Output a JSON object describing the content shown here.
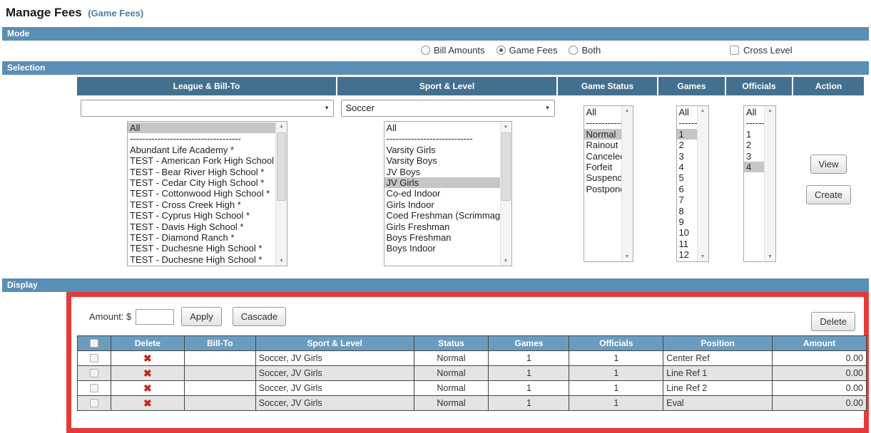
{
  "page": {
    "title": "Manage Fees",
    "subtitle": "(Game Fees)"
  },
  "section_labels": {
    "mode": "Mode",
    "selection": "Selection",
    "display": "Display"
  },
  "icons": {
    "dropdown_arrow": "▼",
    "scroll_up": "▲",
    "scroll_down": "▼",
    "delete_x": "✖"
  },
  "colors": {
    "section_bar": "#5b8eb4",
    "selection_header": "#44708f",
    "display_table_header": "#6b9cc0",
    "red_border": "#e23b3b",
    "delete_icon": "#c3271b",
    "selected_item_bg": "#c6c6c6"
  },
  "mode": {
    "options": [
      {
        "label": "Bill Amounts",
        "selected": false
      },
      {
        "label": "Game Fees",
        "selected": true
      },
      {
        "label": "Both",
        "selected": false
      }
    ],
    "cross_level": {
      "label": "Cross Level",
      "checked": false
    }
  },
  "selection": {
    "columns": [
      "League & Bill-To",
      "Sport & Level",
      "Game Status",
      "Games",
      "Officials",
      "Action"
    ],
    "league_dropdown_value": "",
    "sport_dropdown_value": "Soccer",
    "league_list": [
      {
        "label": "All",
        "selected": true
      },
      {
        "label": "------------------------------------"
      },
      {
        "label": "Abundant Life Academy *"
      },
      {
        "label": "TEST - American Fork High School *"
      },
      {
        "label": "TEST - Bear River High School *"
      },
      {
        "label": "TEST - Cedar City High School *"
      },
      {
        "label": "TEST - Cottonwood High School *"
      },
      {
        "label": "TEST - Cross Creek High *"
      },
      {
        "label": "TEST - Cyprus High School *"
      },
      {
        "label": "TEST - Davis High School *"
      },
      {
        "label": "TEST - Diamond Ranch *"
      },
      {
        "label": "TEST - Duchesne High School *"
      },
      {
        "label": "TEST - Duchesne High School *"
      }
    ],
    "sport_list": [
      {
        "label": "All"
      },
      {
        "label": "----------------------------"
      },
      {
        "label": "Varsity Girls"
      },
      {
        "label": "Varsity Boys"
      },
      {
        "label": "JV Boys"
      },
      {
        "label": "JV Girls",
        "selected": true
      },
      {
        "label": "Co-ed Indoor"
      },
      {
        "label": "Girls Indoor"
      },
      {
        "label": "Coed Freshman (Scrimmage)"
      },
      {
        "label": "Girls Freshman"
      },
      {
        "label": "Boys Freshman"
      },
      {
        "label": "Boys Indoor"
      }
    ],
    "status_list": [
      {
        "label": "All"
      },
      {
        "label": "--------------------"
      },
      {
        "label": "Normal",
        "selected": true
      },
      {
        "label": "Rainout"
      },
      {
        "label": "Canceled"
      },
      {
        "label": "Forfeit"
      },
      {
        "label": "Suspended"
      },
      {
        "label": "Postponed"
      }
    ],
    "games_list": [
      {
        "label": "All"
      },
      {
        "label": "------"
      },
      {
        "label": "1",
        "selected": true
      },
      {
        "label": "2"
      },
      {
        "label": "3"
      },
      {
        "label": "4"
      },
      {
        "label": "5"
      },
      {
        "label": "6"
      },
      {
        "label": "7"
      },
      {
        "label": "8"
      },
      {
        "label": "9"
      },
      {
        "label": "10"
      },
      {
        "label": "11"
      },
      {
        "label": "12"
      }
    ],
    "officials_list": [
      {
        "label": "All"
      },
      {
        "label": "------"
      },
      {
        "label": "1"
      },
      {
        "label": "2"
      },
      {
        "label": "3"
      },
      {
        "label": "4",
        "selected": true
      }
    ],
    "view_button": "View",
    "create_button": "Create"
  },
  "display": {
    "amount_label": "Amount: $",
    "amount_value": "",
    "apply_button": "Apply",
    "cascade_button": "Cascade",
    "delete_button": "Delete",
    "table": {
      "columns": {
        "delete": "Delete",
        "bill_to": "Bill-To",
        "sport_level": "Sport & Level",
        "status": "Status",
        "games": "Games",
        "officials": "Officials",
        "position": "Position",
        "amount": "Amount"
      },
      "rows": [
        {
          "bill_to": "",
          "sport_level": "Soccer, JV Girls",
          "status": "Normal",
          "games": "1",
          "officials": "1",
          "position": "Center Ref",
          "amount": "0.00"
        },
        {
          "bill_to": "",
          "sport_level": "Soccer, JV Girls",
          "status": "Normal",
          "games": "1",
          "officials": "1",
          "position": "Line Ref 1",
          "amount": "0.00"
        },
        {
          "bill_to": "",
          "sport_level": "Soccer, JV Girls",
          "status": "Normal",
          "games": "1",
          "officials": "1",
          "position": "Line Ref 2",
          "amount": "0.00"
        },
        {
          "bill_to": "",
          "sport_level": "Soccer, JV Girls",
          "status": "Normal",
          "games": "1",
          "officials": "1",
          "position": "Eval",
          "amount": "0.00"
        }
      ]
    }
  }
}
